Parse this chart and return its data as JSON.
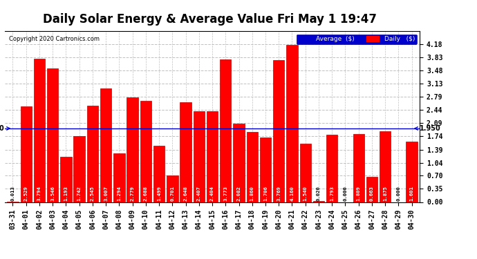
{
  "title": "Daily Solar Energy & Average Value Fri May 1 19:47",
  "copyright": "Copyright 2020 Cartronics.com",
  "categories": [
    "03-31",
    "04-01",
    "04-02",
    "04-03",
    "04-04",
    "04-05",
    "04-06",
    "04-07",
    "04-08",
    "04-09",
    "04-10",
    "04-11",
    "04-12",
    "04-13",
    "04-14",
    "04-15",
    "04-16",
    "04-17",
    "04-18",
    "04-19",
    "04-20",
    "04-21",
    "04-22",
    "04-23",
    "04-24",
    "04-25",
    "04-26",
    "04-27",
    "04-28",
    "04-29",
    "04-30"
  ],
  "values": [
    0.013,
    2.529,
    3.794,
    3.546,
    1.193,
    1.742,
    2.545,
    3.007,
    1.294,
    2.779,
    2.688,
    1.499,
    0.701,
    2.648,
    2.407,
    2.404,
    3.773,
    2.082,
    1.86,
    1.706,
    3.769,
    4.16,
    1.54,
    0.02,
    1.793,
    0.0,
    1.809,
    0.663,
    1.875,
    0.0,
    1.601
  ],
  "average_line": 1.95,
  "bar_color": "#FF0000",
  "average_line_color": "#0000CC",
  "background_color": "#FFFFFF",
  "plot_bg_color": "#FFFFFF",
  "grid_color": "#C0C0C0",
  "ylim": [
    0.0,
    4.53
  ],
  "yticks": [
    0.0,
    0.35,
    0.7,
    1.04,
    1.39,
    1.74,
    2.09,
    2.44,
    2.79,
    3.13,
    3.48,
    3.83,
    4.18
  ],
  "title_fontsize": 12,
  "tick_fontsize": 7,
  "avg_label": "1.950",
  "bar_edge_color": "#BB0000",
  "legend_avg_color": "#0000CC",
  "legend_daily_color": "#FF0000"
}
